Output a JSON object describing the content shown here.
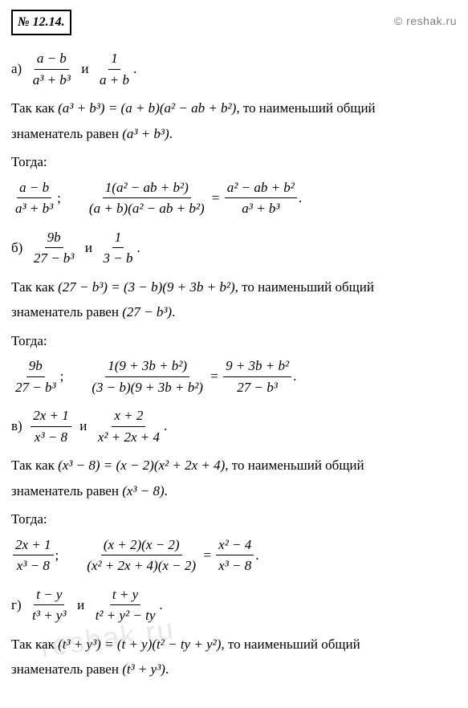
{
  "watermark": "© reshak.ru",
  "watermark_diag": "reshak.ru",
  "problem_number": "№ 12.14.",
  "colors": {
    "text": "#000000",
    "watermark": "#808080",
    "bg": "#ffffff"
  },
  "fonts": {
    "body_size": 17,
    "watermark_size": 14
  },
  "part_a": {
    "label": "а)",
    "given_sep": "и",
    "frac1_num": "a − b",
    "frac1_den": "a³ + b³",
    "frac2_num": "1",
    "frac2_den": "a + b",
    "explain_pre": "Так как",
    "factor_lhs": "(a³ + b³) =",
    "factor_rhs": "(a + b)(a² − ab + b²)",
    "explain_mid": ", то наименьший общий",
    "explain_line2": "знаменатель равен",
    "lcd": "(a³ + b³)",
    "then": "Тогда:",
    "result1_num": "a − b",
    "result1_den": "a³ + b³",
    "step2_num": "1(a² − ab + b²)",
    "step2_den": "(a + b)(a² − ab + b²)",
    "result2_num": "a² − ab + b²",
    "result2_den": "a³ + b³"
  },
  "part_b": {
    "label": "б)",
    "frac1_num": "9b",
    "frac1_den": "27 − b³",
    "frac2_num": "1",
    "frac2_den": "3 − b",
    "factor_lhs": "(27 − b³) =",
    "factor_rhs": "(3 − b)(9 + 3b + b²)",
    "lcd": "(27 − b³)",
    "result1_num": "9b",
    "result1_den": "27 − b³",
    "step2_num": "1(9 + 3b + b²)",
    "step2_den": "(3 − b)(9 + 3b + b²)",
    "result2_num": "9 + 3b + b²",
    "result2_den": "27 − b³"
  },
  "part_c": {
    "label": "в)",
    "frac1_num": "2x + 1",
    "frac1_den": "x³ − 8",
    "frac2_num": "x + 2",
    "frac2_den": "x² + 2x + 4",
    "factor_lhs": "(x³ − 8) =",
    "factor_rhs": "(x − 2)(x² + 2x + 4)",
    "lcd": "(x³ − 8)",
    "result1_num": "2x + 1",
    "result1_den": "x³ − 8",
    "step2_num": "(x + 2)(x − 2)",
    "step2_den": "(x² + 2x + 4)(x − 2)",
    "result2_num": "x² − 4",
    "result2_den": "x³ − 8"
  },
  "part_d": {
    "label": "г)",
    "frac1_num": "t − y",
    "frac1_den": "t³ + y³",
    "frac2_num": "t + y",
    "frac2_den": "t² + y² − ty",
    "factor_lhs": "(t³ + y³) =",
    "factor_rhs": "(t + y)(t² − ty + y²)",
    "lcd": "(t³ + y³)"
  },
  "common": {
    "and": "и",
    "explain_pre": "Так как",
    "explain_mid": ", то наименьший общий",
    "explain_line2": "знаменатель равен",
    "then": "Тогда:",
    "period": ".",
    "semicolon": ";",
    "equals": "="
  }
}
